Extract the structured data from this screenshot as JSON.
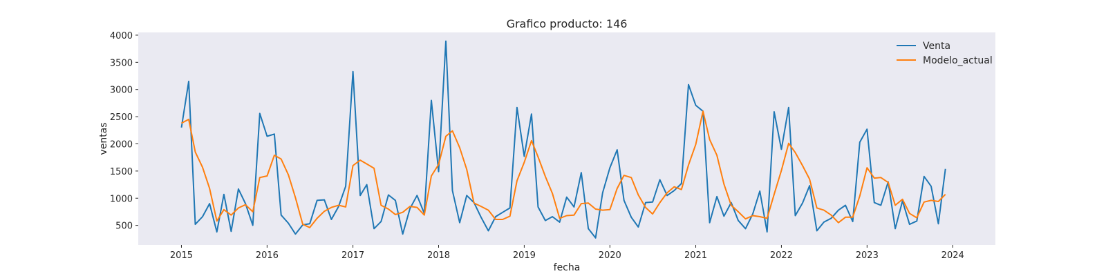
{
  "chart_data": {
    "type": "line",
    "title": "Grafico producto: 146",
    "xlabel": "fecha",
    "ylabel": "ventas",
    "x_start": "2015-01",
    "x_frequency": "monthly",
    "xlim": [
      "2014-07-01",
      "2024-07-01"
    ],
    "ylim": [
      140,
      4050
    ],
    "x_ticks": [
      "2015",
      "2016",
      "2017",
      "2018",
      "2019",
      "2020",
      "2021",
      "2022",
      "2023",
      "2024"
    ],
    "y_ticks": [
      500,
      1000,
      1500,
      2000,
      2500,
      3000,
      3500,
      4000
    ],
    "grid": false,
    "legend_position": "top-right",
    "colors": {
      "background": "#eaeaf2",
      "venta": "#1f77b4",
      "modelo": "#ff7f0e"
    },
    "series": [
      {
        "name": "Venta",
        "color": "#1f77b4",
        "values": [
          2300,
          3150,
          520,
          660,
          900,
          380,
          1070,
          390,
          1170,
          900,
          500,
          2560,
          2140,
          2180,
          690,
          540,
          340,
          510,
          530,
          960,
          970,
          610,
          850,
          1220,
          3330,
          1050,
          1250,
          440,
          570,
          1060,
          960,
          340,
          810,
          1050,
          720,
          2800,
          1490,
          3890,
          1140,
          550,
          1050,
          920,
          650,
          400,
          660,
          740,
          820,
          2670,
          1770,
          2550,
          840,
          590,
          660,
          560,
          1020,
          840,
          1470,
          440,
          270,
          1100,
          1560,
          1890,
          960,
          650,
          470,
          920,
          930,
          1340,
          1050,
          1140,
          1270,
          3090,
          2710,
          2600,
          550,
          1030,
          670,
          920,
          590,
          440,
          710,
          1130,
          380,
          2590,
          1900,
          2670,
          680,
          910,
          1230,
          400,
          560,
          630,
          780,
          870,
          570,
          2030,
          2270,
          920,
          870,
          1300,
          440,
          950,
          520,
          580,
          1400,
          1220,
          530,
          1540
        ]
      },
      {
        "name": "Modelo_actual",
        "color": "#ff7f0e",
        "values": [
          2380,
          2450,
          1850,
          1570,
          1180,
          580,
          790,
          690,
          820,
          880,
          750,
          1380,
          1410,
          1790,
          1720,
          1430,
          1010,
          520,
          460,
          630,
          760,
          830,
          870,
          840,
          1600,
          1700,
          1630,
          1550,
          870,
          800,
          700,
          740,
          850,
          830,
          690,
          1410,
          1620,
          2140,
          2240,
          1930,
          1530,
          910,
          850,
          780,
          610,
          610,
          670,
          1320,
          1660,
          2060,
          1760,
          1400,
          1090,
          630,
          680,
          690,
          900,
          910,
          800,
          780,
          790,
          1180,
          1420,
          1380,
          1060,
          830,
          710,
          920,
          1100,
          1210,
          1160,
          1610,
          1990,
          2600,
          2080,
          1790,
          1260,
          870,
          750,
          620,
          680,
          660,
          630,
          1070,
          1510,
          2010,
          1840,
          1600,
          1350,
          820,
          780,
          690,
          550,
          650,
          650,
          1040,
          1560,
          1370,
          1380,
          1290,
          870,
          980,
          720,
          640,
          930,
          960,
          940,
          1070
        ]
      }
    ]
  }
}
